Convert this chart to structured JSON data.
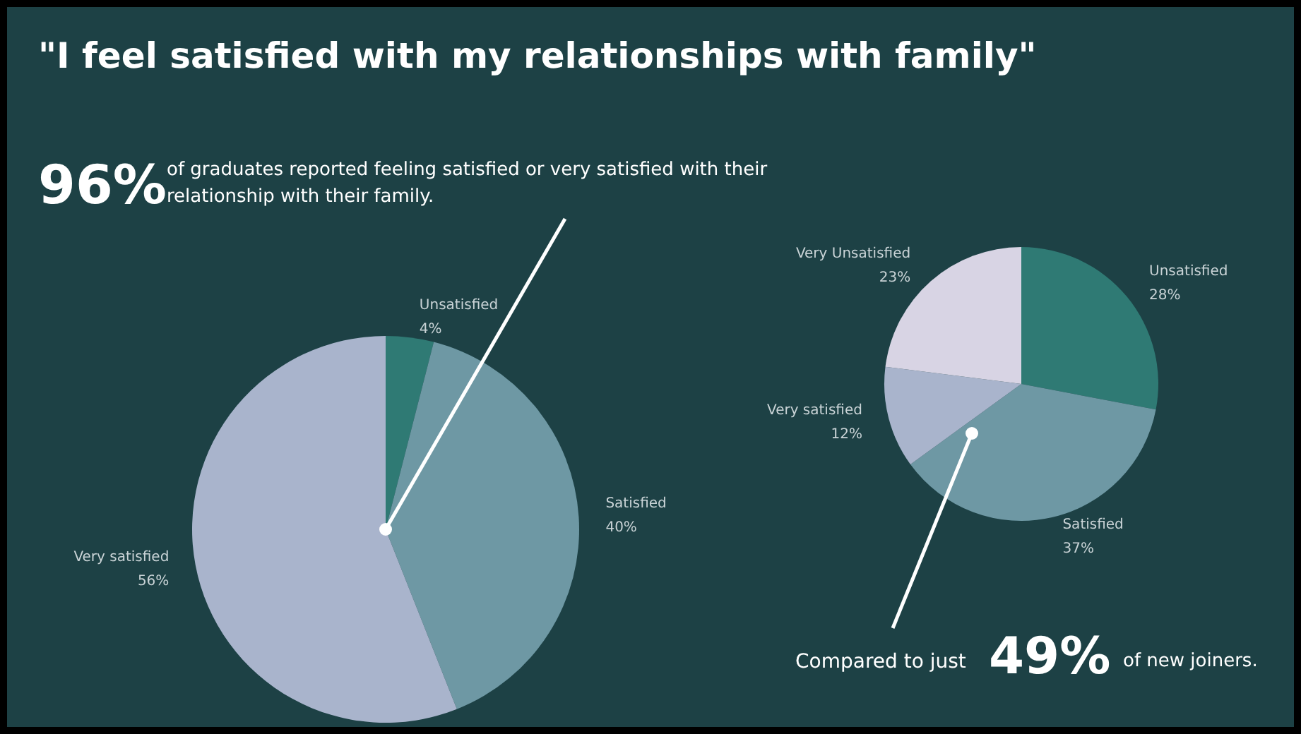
{
  "chart_data": [
    {
      "type": "pie",
      "title": "\"I feel satisfied with my relationships with family\"",
      "annotations": [
        "96%",
        "of graduates reported feeling satisfied or very satisfied with their relationship with their family."
      ],
      "categories": [
        "Unsatisfied",
        "Satisfied",
        "Very satisfied"
      ],
      "values": [
        4,
        40,
        56
      ],
      "value_labels": [
        "4%",
        "40%",
        "56%"
      ],
      "colors": [
        "#2f7a74",
        "#6e98a4",
        "#a9b4cc"
      ]
    },
    {
      "type": "pie",
      "annotations": [
        "Compared to just",
        "49%",
        "of new joiners."
      ],
      "categories": [
        "Unsatisfied",
        "Satisfied",
        "Very satisfied",
        "Very Unsatisfied"
      ],
      "values": [
        28,
        37,
        12,
        23
      ],
      "value_labels": [
        "28%",
        "37%",
        "12%",
        "23%"
      ],
      "colors": [
        "#2f7a74",
        "#6e98a4",
        "#a9b4cc",
        "#d8d4e4"
      ]
    }
  ]
}
